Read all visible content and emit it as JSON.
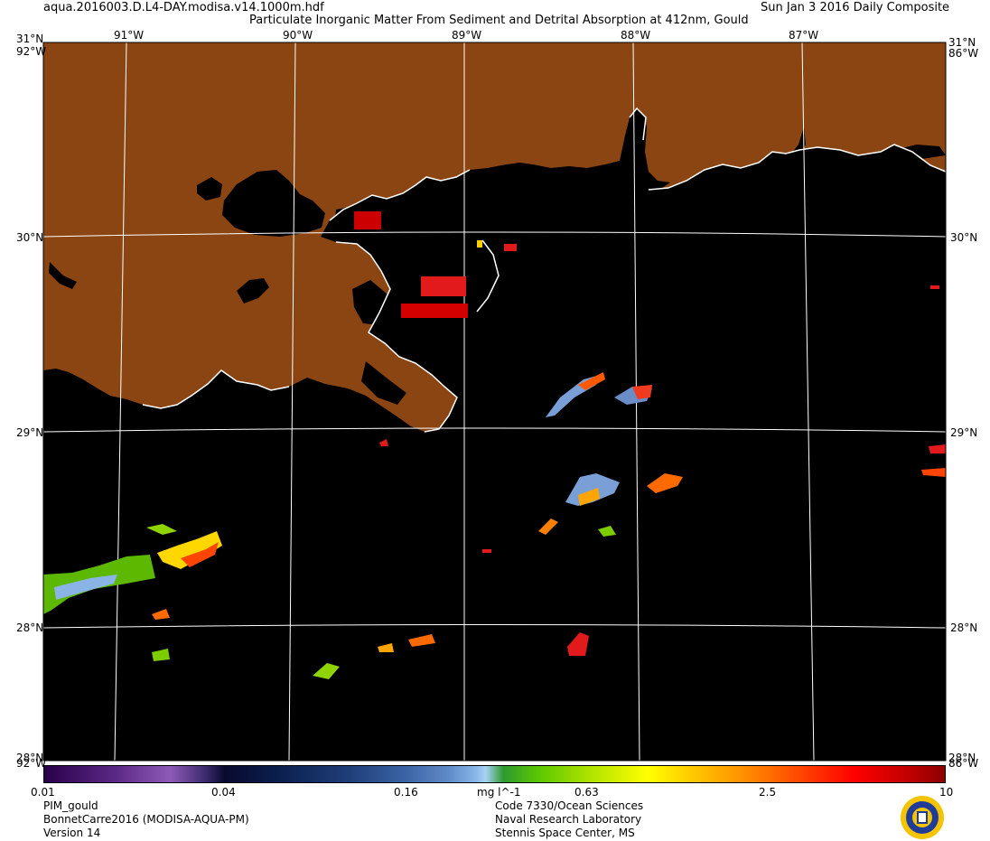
{
  "header": {
    "filename": "aqua.2016003.D.L4-DAY.modisa.v14.1000m.hdf",
    "product_title": "Particulate Inorganic Matter From Sediment and Detrital Absorption at 412nm, Gould",
    "date_label": "Sun Jan  3 2016 Daily Composite"
  },
  "map": {
    "top_lon_labels": [
      "91°W",
      "90°W",
      "89°W",
      "88°W",
      "87°W"
    ],
    "lat_labels": [
      "30°N",
      "29°N",
      "28°N"
    ],
    "corner_lat_top": "31°N",
    "corner_lon_top": "92°W",
    "corner_lat_bottom": "28°N",
    "corner_lon_bottom": "86°W",
    "colors": {
      "land": "#8b4513",
      "water": "#000000",
      "grid": "#ffffff",
      "coast": "#ffffff"
    }
  },
  "colorbar": {
    "tick_labels": [
      "0.01",
      "0.04",
      "0.16",
      "mg l^-1",
      "0.63",
      "2.5",
      "10"
    ],
    "scale": "log",
    "range": [
      0.01,
      10
    ],
    "units": "mg l^-1"
  },
  "footer": {
    "left": [
      "PIM_gould",
      "BonnetCarre2016 (MODISA-AQUA-PM)",
      "Version 14"
    ],
    "center": [
      "Code 7330/Ocean Sciences",
      "Naval Research Laboratory",
      "Stennis Space Center, MS"
    ]
  }
}
